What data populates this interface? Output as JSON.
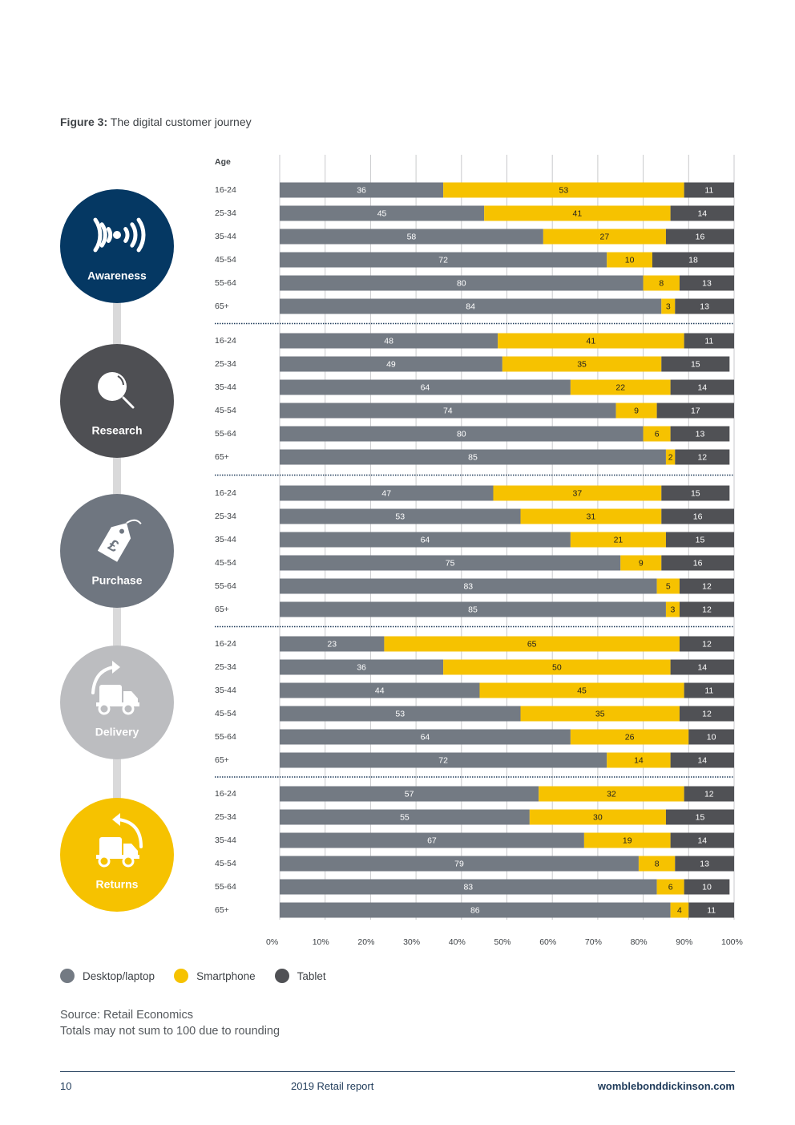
{
  "figure": {
    "label": "Figure 3:",
    "title": "The digital customer journey"
  },
  "chart_data": {
    "type": "bar",
    "orientation": "horizontal-stacked-100",
    "age_header": "Age",
    "xlim": [
      0,
      100
    ],
    "x_ticks": [
      "0%",
      "10%",
      "20%",
      "30%",
      "40%",
      "50%",
      "60%",
      "70%",
      "80%",
      "90%",
      "100%"
    ],
    "series_names": [
      "Desktop/laptop",
      "Smartphone",
      "Tablet"
    ],
    "series_colors": [
      "#737a83",
      "#f6c200",
      "#505155"
    ],
    "groups": [
      {
        "stage": "Awareness",
        "icon": "broadcast-icon",
        "circle_color": "#053863",
        "rows": [
          {
            "age": "16-24",
            "values": [
              36,
              53,
              11
            ]
          },
          {
            "age": "25-34",
            "values": [
              45,
              41,
              14
            ]
          },
          {
            "age": "35-44",
            "values": [
              58,
              27,
              16
            ]
          },
          {
            "age": "45-54",
            "values": [
              72,
              10,
              18
            ]
          },
          {
            "age": "55-64",
            "values": [
              80,
              8,
              13
            ]
          },
          {
            "age": "65+",
            "values": [
              84,
              3,
              13
            ]
          }
        ]
      },
      {
        "stage": "Research",
        "icon": "magnifier-icon",
        "circle_color": "#4e4f53",
        "rows": [
          {
            "age": "16-24",
            "values": [
              48,
              41,
              11
            ]
          },
          {
            "age": "25-34",
            "values": [
              49,
              35,
              15
            ]
          },
          {
            "age": "35-44",
            "values": [
              64,
              22,
              14
            ]
          },
          {
            "age": "45-54",
            "values": [
              74,
              9,
              17
            ]
          },
          {
            "age": "55-64",
            "values": [
              80,
              6,
              13
            ]
          },
          {
            "age": "65+",
            "values": [
              85,
              2,
              12
            ]
          }
        ]
      },
      {
        "stage": "Purchase",
        "icon": "price-tag-icon",
        "circle_color": "#6f7680",
        "rows": [
          {
            "age": "16-24",
            "values": [
              47,
              37,
              15
            ]
          },
          {
            "age": "25-34",
            "values": [
              53,
              31,
              16
            ]
          },
          {
            "age": "35-44",
            "values": [
              64,
              21,
              15
            ]
          },
          {
            "age": "45-54",
            "values": [
              75,
              9,
              16
            ]
          },
          {
            "age": "55-64",
            "values": [
              83,
              5,
              12
            ]
          },
          {
            "age": "65+",
            "values": [
              85,
              3,
              12
            ]
          }
        ]
      },
      {
        "stage": "Delivery",
        "icon": "delivery-truck-icon",
        "circle_color": "#bcbdc0",
        "rows": [
          {
            "age": "16-24",
            "values": [
              23,
              65,
              12
            ]
          },
          {
            "age": "25-34",
            "values": [
              36,
              50,
              14
            ]
          },
          {
            "age": "35-44",
            "values": [
              44,
              45,
              11
            ]
          },
          {
            "age": "45-54",
            "values": [
              53,
              35,
              12
            ]
          },
          {
            "age": "55-64",
            "values": [
              64,
              26,
              10
            ]
          },
          {
            "age": "65+",
            "values": [
              72,
              14,
              14
            ]
          }
        ]
      },
      {
        "stage": "Returns",
        "icon": "returns-truck-icon",
        "circle_color": "#f6c200",
        "rows": [
          {
            "age": "16-24",
            "values": [
              57,
              32,
              12
            ]
          },
          {
            "age": "25-34",
            "values": [
              55,
              30,
              15
            ]
          },
          {
            "age": "35-44",
            "values": [
              67,
              19,
              14
            ]
          },
          {
            "age": "45-54",
            "values": [
              79,
              8,
              13
            ]
          },
          {
            "age": "55-64",
            "values": [
              83,
              6,
              10
            ]
          },
          {
            "age": "65+",
            "values": [
              86,
              4,
              11
            ]
          }
        ]
      }
    ]
  },
  "legend": [
    {
      "label": "Desktop/laptop",
      "color": "#737a83"
    },
    {
      "label": "Smartphone",
      "color": "#f6c200"
    },
    {
      "label": "Tablet",
      "color": "#505155"
    }
  ],
  "source": {
    "line1": "Source: Retail Economics",
    "line2": "Totals may not sum to 100 due to rounding"
  },
  "footer": {
    "page_number": "10",
    "report_title": "2019 Retail report",
    "website": "womblebonddickinson.com"
  }
}
